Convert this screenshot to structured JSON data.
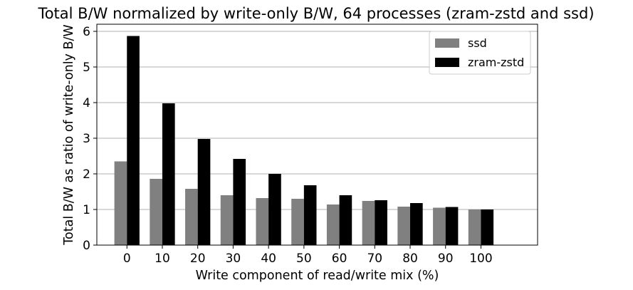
{
  "chart_data": {
    "type": "bar",
    "title": "Total B/W normalized by write-only B/W, 64 processes (zram-zstd and ssd)",
    "xlabel": "Write component of read/write mix (%)",
    "ylabel": "Total B/W as ratio of write-only B/W",
    "categories": [
      "0",
      "10",
      "20",
      "30",
      "40",
      "50",
      "60",
      "70",
      "80",
      "90",
      "100"
    ],
    "ylim": [
      0,
      6.2
    ],
    "yticks": [
      "0",
      "1",
      "2",
      "3",
      "4",
      "5",
      "6"
    ],
    "grid": "y-major",
    "legend_position": "top-right",
    "series": [
      {
        "name": "ssd",
        "color": "#808080",
        "values": [
          2.35,
          1.86,
          1.58,
          1.4,
          1.32,
          1.3,
          1.14,
          1.24,
          1.08,
          1.05,
          1.0
        ]
      },
      {
        "name": "zram-zstd",
        "color": "#000000",
        "values": [
          5.87,
          3.98,
          2.98,
          2.42,
          2.0,
          1.68,
          1.4,
          1.26,
          1.18,
          1.07,
          1.0
        ]
      }
    ]
  }
}
